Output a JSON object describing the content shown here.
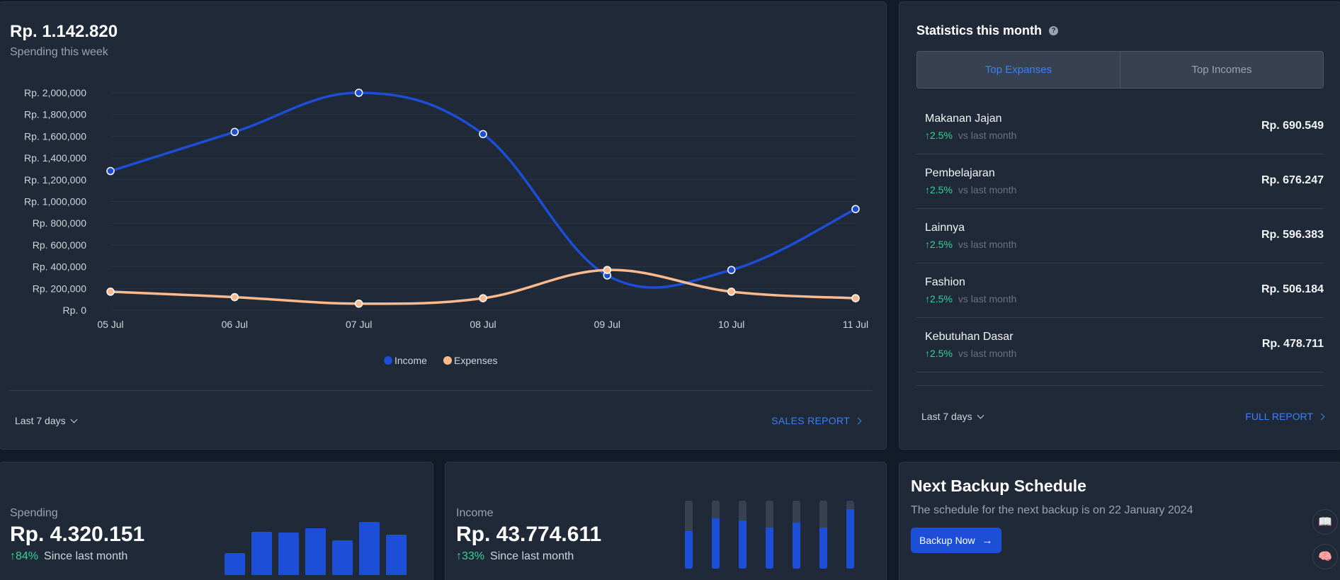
{
  "main": {
    "amount": "Rp. 1.142.820",
    "subtitle": "Spending this week",
    "range_label": "Last 7 days",
    "report_link": "SALES REPORT"
  },
  "chart_data": {
    "type": "line",
    "x": [
      "05 Jul",
      "06 Jul",
      "07 Jul",
      "08 Jul",
      "09 Jul",
      "10 Jul",
      "11 Jul"
    ],
    "y_ticks": [
      "Rp. 2,000,000",
      "Rp. 1,800,000",
      "Rp. 1,600,000",
      "Rp. 1,400,000",
      "Rp. 1,200,000",
      "Rp. 1,000,000",
      "Rp. 800,000",
      "Rp. 600,000",
      "Rp. 400,000",
      "Rp. 200,000",
      "Rp. 0"
    ],
    "ylim": [
      0,
      2000000
    ],
    "grid": true,
    "legend_position": "bottom",
    "series": [
      {
        "name": "Income",
        "color": "#1d4ed8",
        "values": [
          1280000,
          1640000,
          2000000,
          1620000,
          320000,
          370000,
          930000
        ]
      },
      {
        "name": "Expenses",
        "color": "#fdba8c",
        "values": [
          170000,
          120000,
          60000,
          110000,
          370000,
          170000,
          110000
        ]
      }
    ]
  },
  "stats": {
    "title": "Statistics this month",
    "tabs": [
      "Top Expanses",
      "Top Incomes"
    ],
    "items": [
      {
        "name": "Makanan Jajan",
        "change": "2.5%",
        "vs": "vs last month",
        "amount": "Rp. 690.549"
      },
      {
        "name": "Pembelajaran",
        "change": "2.5%",
        "vs": "vs last month",
        "amount": "Rp. 676.247"
      },
      {
        "name": "Lainnya",
        "change": "2.5%",
        "vs": "vs last month",
        "amount": "Rp. 596.383"
      },
      {
        "name": "Fashion",
        "change": "2.5%",
        "vs": "vs last month",
        "amount": "Rp. 506.184"
      },
      {
        "name": "Kebutuhan Dasar",
        "change": "2.5%",
        "vs": "vs last month",
        "amount": "Rp. 478.711"
      }
    ],
    "range_label": "Last 7 days",
    "report_link": "FULL REPORT"
  },
  "spending": {
    "label": "Spending",
    "amount": "Rp. 4.320.151",
    "change": "84%",
    "since": "Since last month",
    "bar_levels": [
      0.35,
      0.68,
      0.67,
      0.73,
      0.54,
      0.83,
      0.63
    ]
  },
  "income": {
    "label": "Income",
    "amount": "Rp. 43.774.611",
    "change": "33%",
    "since": "Since last month",
    "bar_levels": [
      0.55,
      0.74,
      0.71,
      0.6,
      0.68,
      0.6,
      0.87
    ]
  },
  "backup": {
    "title": "Next Backup Schedule",
    "description": "The schedule for the next backup is on 22 January 2024",
    "button_label": "Backup Now"
  },
  "icons": {
    "help": "question-circle-icon",
    "chevron": "chevron-down-icon",
    "arrow": "arrow-right-icon",
    "book": "book-open-icon",
    "brain": "brain-icon"
  }
}
